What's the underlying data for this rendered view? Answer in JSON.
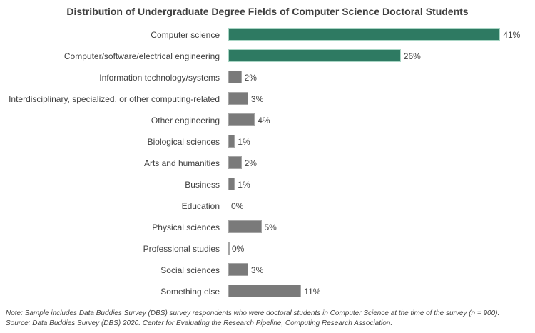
{
  "chart_data": {
    "type": "bar",
    "orientation": "horizontal",
    "title": "Distribution of Undergraduate Degree Fields of Computer Science Doctoral Students",
    "xlabel": "",
    "ylabel": "",
    "grid": false,
    "legend": null,
    "categories": [
      "Computer science",
      "Computer/software/electrical engineering",
      "Information technology/systems",
      "Interdisciplinary, specialized, or other computing-related",
      "Other engineering",
      "Biological sciences",
      "Arts and humanities",
      "Business",
      "Education",
      "Physical sciences",
      "Professional studies",
      "Social sciences",
      "Something else"
    ],
    "values": [
      41,
      26,
      2,
      3,
      4,
      1,
      2,
      1,
      0,
      5,
      0,
      3,
      11
    ],
    "value_labels": [
      "41%",
      "26%",
      "2%",
      "3%",
      "4%",
      "1%",
      "2%",
      "1%",
      "0%",
      "5%",
      "0%",
      "3%",
      "11%"
    ],
    "highlighted": [
      true,
      true,
      false,
      false,
      false,
      false,
      false,
      false,
      false,
      false,
      false,
      false,
      false
    ],
    "units": "%"
  },
  "colors": {
    "highlight": "#2e7a62",
    "normal": "#7a7a7a",
    "text": "#404040"
  },
  "notes": {
    "note": "Note: Sample includes Data Buddies Survey (DBS) survey respondents who were doctoral students in Computer Science at the time of the survey (n = 900).",
    "source": "Source: Data Buddies Survey (DBS) 2020. Center for Evaluating the Research Pipeline, Computing Research Association."
  }
}
